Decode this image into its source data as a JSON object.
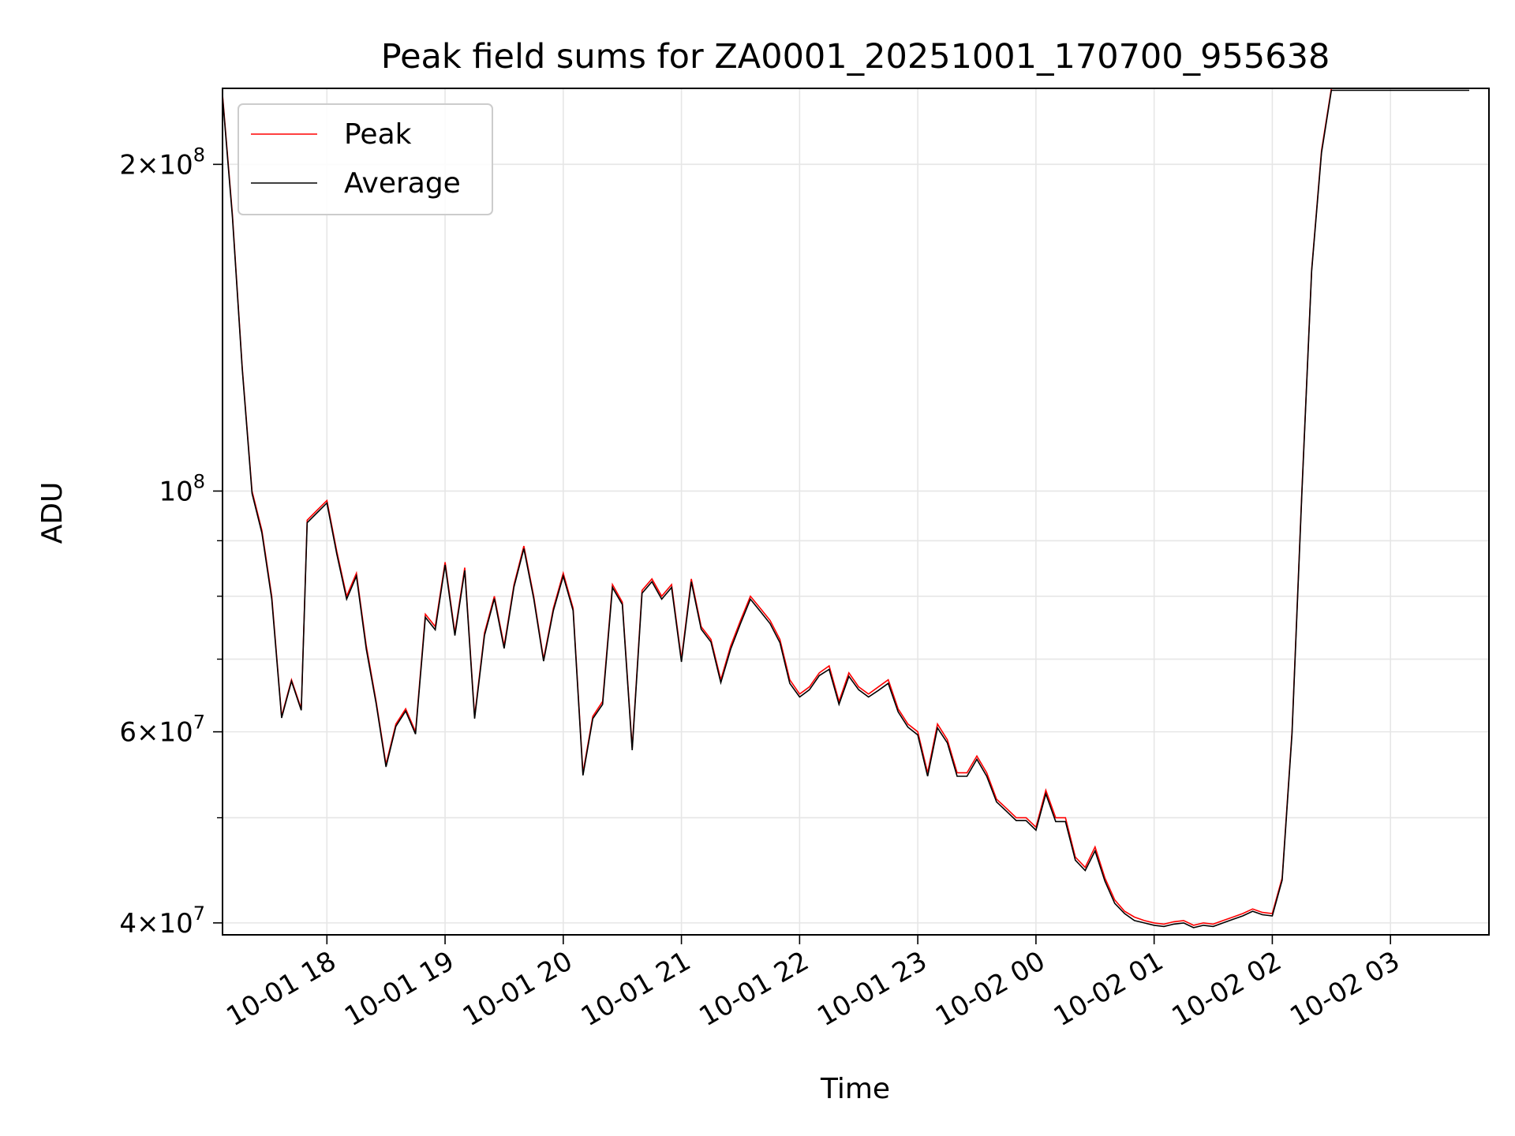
{
  "chart_data": {
    "type": "line",
    "title": "Peak field sums for ZA0001_20251001_170700_955638",
    "xlabel": "Time",
    "ylabel": "ADU",
    "x_axis_type": "datetime",
    "y_scale": "log",
    "xlim": [
      "2025-10-01 17:07",
      "2025-10-02 03:50"
    ],
    "ylim": [
      39000000,
      235000000
    ],
    "grid": true,
    "legend_position": "upper left",
    "x_ticks": [
      {
        "value": "2025-10-01 18:00",
        "label": "10-01 18"
      },
      {
        "value": "2025-10-01 19:00",
        "label": "10-01 19"
      },
      {
        "value": "2025-10-01 20:00",
        "label": "10-01 20"
      },
      {
        "value": "2025-10-01 21:00",
        "label": "10-01 21"
      },
      {
        "value": "2025-10-01 22:00",
        "label": "10-01 22"
      },
      {
        "value": "2025-10-01 23:00",
        "label": "10-01 23"
      },
      {
        "value": "2025-10-02 00:00",
        "label": "10-02 00"
      },
      {
        "value": "2025-10-02 01:00",
        "label": "10-02 01"
      },
      {
        "value": "2025-10-02 02:00",
        "label": "10-02 02"
      },
      {
        "value": "2025-10-02 03:00",
        "label": "10-02 03"
      }
    ],
    "y_major_ticks": [
      {
        "value": 40000000,
        "base": "4",
        "exp": "7"
      },
      {
        "value": 60000000,
        "base": "6",
        "exp": "7"
      },
      {
        "value": 100000000,
        "base": "",
        "exp": "8"
      },
      {
        "value": 200000000,
        "base": "2",
        "exp": "8"
      }
    ],
    "y_minor_ticks": [
      50000000,
      70000000,
      80000000,
      90000000
    ],
    "series": [
      {
        "name": "Peak",
        "color": "#ff0000"
      },
      {
        "name": "Average",
        "color": "#000000"
      }
    ],
    "x": [
      "2025-10-01 17:07",
      "2025-10-01 17:12",
      "2025-10-01 17:17",
      "2025-10-01 17:22",
      "2025-10-01 17:27",
      "2025-10-01 17:32",
      "2025-10-01 17:37",
      "2025-10-01 17:42",
      "2025-10-01 17:47",
      "2025-10-01 17:50",
      "2025-10-01 17:55",
      "2025-10-01 18:00",
      "2025-10-01 18:05",
      "2025-10-01 18:10",
      "2025-10-01 18:15",
      "2025-10-01 18:20",
      "2025-10-01 18:25",
      "2025-10-01 18:30",
      "2025-10-01 18:35",
      "2025-10-01 18:40",
      "2025-10-01 18:45",
      "2025-10-01 18:50",
      "2025-10-01 18:55",
      "2025-10-01 19:00",
      "2025-10-01 19:05",
      "2025-10-01 19:10",
      "2025-10-01 19:15",
      "2025-10-01 19:20",
      "2025-10-01 19:25",
      "2025-10-01 19:30",
      "2025-10-01 19:35",
      "2025-10-01 19:40",
      "2025-10-01 19:45",
      "2025-10-01 19:50",
      "2025-10-01 19:55",
      "2025-10-01 20:00",
      "2025-10-01 20:05",
      "2025-10-01 20:10",
      "2025-10-01 20:15",
      "2025-10-01 20:20",
      "2025-10-01 20:25",
      "2025-10-01 20:30",
      "2025-10-01 20:35",
      "2025-10-01 20:40",
      "2025-10-01 20:45",
      "2025-10-01 20:50",
      "2025-10-01 20:55",
      "2025-10-01 21:00",
      "2025-10-01 21:05",
      "2025-10-01 21:10",
      "2025-10-01 21:15",
      "2025-10-01 21:20",
      "2025-10-01 21:25",
      "2025-10-01 21:30",
      "2025-10-01 21:35",
      "2025-10-01 21:40",
      "2025-10-01 21:45",
      "2025-10-01 21:50",
      "2025-10-01 21:55",
      "2025-10-01 22:00",
      "2025-10-01 22:05",
      "2025-10-01 22:10",
      "2025-10-01 22:15",
      "2025-10-01 22:20",
      "2025-10-01 22:25",
      "2025-10-01 22:30",
      "2025-10-01 22:35",
      "2025-10-01 22:40",
      "2025-10-01 22:45",
      "2025-10-01 22:50",
      "2025-10-01 22:55",
      "2025-10-01 23:00",
      "2025-10-01 23:05",
      "2025-10-01 23:10",
      "2025-10-01 23:15",
      "2025-10-01 23:20",
      "2025-10-01 23:25",
      "2025-10-01 23:30",
      "2025-10-01 23:35",
      "2025-10-01 23:40",
      "2025-10-01 23:45",
      "2025-10-01 23:50",
      "2025-10-01 23:55",
      "2025-10-02 00:00",
      "2025-10-02 00:05",
      "2025-10-02 00:10",
      "2025-10-02 00:15",
      "2025-10-02 00:20",
      "2025-10-02 00:25",
      "2025-10-02 00:30",
      "2025-10-02 00:35",
      "2025-10-02 00:40",
      "2025-10-02 00:45",
      "2025-10-02 00:50",
      "2025-10-02 00:55",
      "2025-10-02 01:00",
      "2025-10-02 01:05",
      "2025-10-02 01:10",
      "2025-10-02 01:15",
      "2025-10-02 01:20",
      "2025-10-02 01:25",
      "2025-10-02 01:30",
      "2025-10-02 01:35",
      "2025-10-02 01:40",
      "2025-10-02 01:45",
      "2025-10-02 01:50",
      "2025-10-02 01:55",
      "2025-10-02 02:00",
      "2025-10-02 02:05",
      "2025-10-02 02:10",
      "2025-10-02 02:15",
      "2025-10-02 02:20",
      "2025-10-02 02:25",
      "2025-10-02 02:30",
      "2025-10-02 02:35",
      "2025-10-02 02:40",
      "2025-10-02 02:45",
      "2025-10-02 02:50",
      "2025-10-02 02:55",
      "2025-10-02 03:00",
      "2025-10-02 03:05",
      "2025-10-02 03:10",
      "2025-10-02 03:15",
      "2025-10-02 03:20",
      "2025-10-02 03:25",
      "2025-10-02 03:30",
      "2025-10-02 03:35",
      "2025-10-02 03:40"
    ],
    "peak_values": [
      232000000,
      180000000,
      130000000,
      100000000,
      92000000,
      80000000,
      62000000,
      67000000,
      63000000,
      94000000,
      96000000,
      98000000,
      88000000,
      80000000,
      84000000,
      72000000,
      64000000,
      56000000,
      61000000,
      63000000,
      60000000,
      77000000,
      75000000,
      86000000,
      74000000,
      85000000,
      62000000,
      74000000,
      80000000,
      72000000,
      82000000,
      89000000,
      80000000,
      70000000,
      78000000,
      84000000,
      78000000,
      55000000,
      62000000,
      64000000,
      82000000,
      79000000,
      58000000,
      81000000,
      83000000,
      80000000,
      82000000,
      70000000,
      83000000,
      75000000,
      73000000,
      67000000,
      72000000,
      76000000,
      80000000,
      78000000,
      76000000,
      73000000,
      67000000,
      65000000,
      66000000,
      68000000,
      69000000,
      64000000,
      68000000,
      66000000,
      65000000,
      66000000,
      67000000,
      63000000,
      61000000,
      60000000,
      55000000,
      61000000,
      59000000,
      55000000,
      55000000,
      57000000,
      55000000,
      52000000,
      51000000,
      50000000,
      50000000,
      49000000,
      53000000,
      50000000,
      50000000,
      46000000,
      45000000,
      47000000,
      44000000,
      42000000,
      41000000,
      40500000,
      40200000,
      40000000,
      39900000,
      40100000,
      40200000,
      39800000,
      40000000,
      39900000,
      40200000,
      40500000,
      40800000,
      41200000,
      40900000,
      40800000,
      44000000,
      60000000,
      100000000,
      160000000,
      206000000,
      235000000,
      235000000,
      235000000,
      235000000,
      235000000,
      235000000,
      235000000,
      235000000,
      235000000,
      235000000,
      235000000,
      235000000,
      235000000,
      235000000,
      235000000,
      235000000
    ],
    "average_values": [
      231000000,
      179000000,
      129500000,
      99500000,
      91500000,
      79500000,
      61800000,
      66800000,
      62800000,
      93500000,
      95500000,
      97500000,
      87500000,
      79500000,
      83500000,
      71500000,
      63700000,
      55700000,
      60700000,
      62700000,
      59700000,
      76500000,
      74500000,
      85500000,
      73600000,
      84500000,
      61700000,
      73600000,
      79600000,
      71600000,
      81600000,
      88500000,
      79600000,
      69700000,
      77600000,
      83500000,
      77600000,
      54700000,
      61700000,
      63600000,
      81500000,
      78600000,
      57700000,
      80500000,
      82500000,
      79500000,
      81500000,
      69600000,
      82500000,
      74600000,
      72600000,
      66600000,
      71500000,
      75500000,
      79500000,
      77500000,
      75500000,
      72500000,
      66500000,
      64600000,
      65600000,
      67600000,
      68500000,
      63600000,
      67500000,
      65600000,
      64600000,
      65500000,
      66500000,
      62600000,
      60600000,
      59600000,
      54600000,
      60500000,
      58600000,
      54600000,
      54600000,
      56600000,
      54600000,
      51700000,
      50700000,
      49700000,
      49700000,
      48700000,
      52600000,
      49600000,
      49600000,
      45700000,
      44700000,
      46600000,
      43700000,
      41700000,
      40800000,
      40200000,
      40000000,
      39800000,
      39700000,
      39900000,
      40000000,
      39600000,
      39800000,
      39700000,
      40000000,
      40300000,
      40600000,
      41000000,
      40700000,
      40600000,
      43800000,
      59700000,
      99500000,
      159500000,
      205000000,
      234000000,
      234000000,
      234000000,
      234000000,
      234000000,
      234000000,
      234000000,
      234000000,
      234000000,
      234000000,
      234000000,
      234000000,
      234000000,
      234000000,
      234000000,
      234000000
    ]
  }
}
